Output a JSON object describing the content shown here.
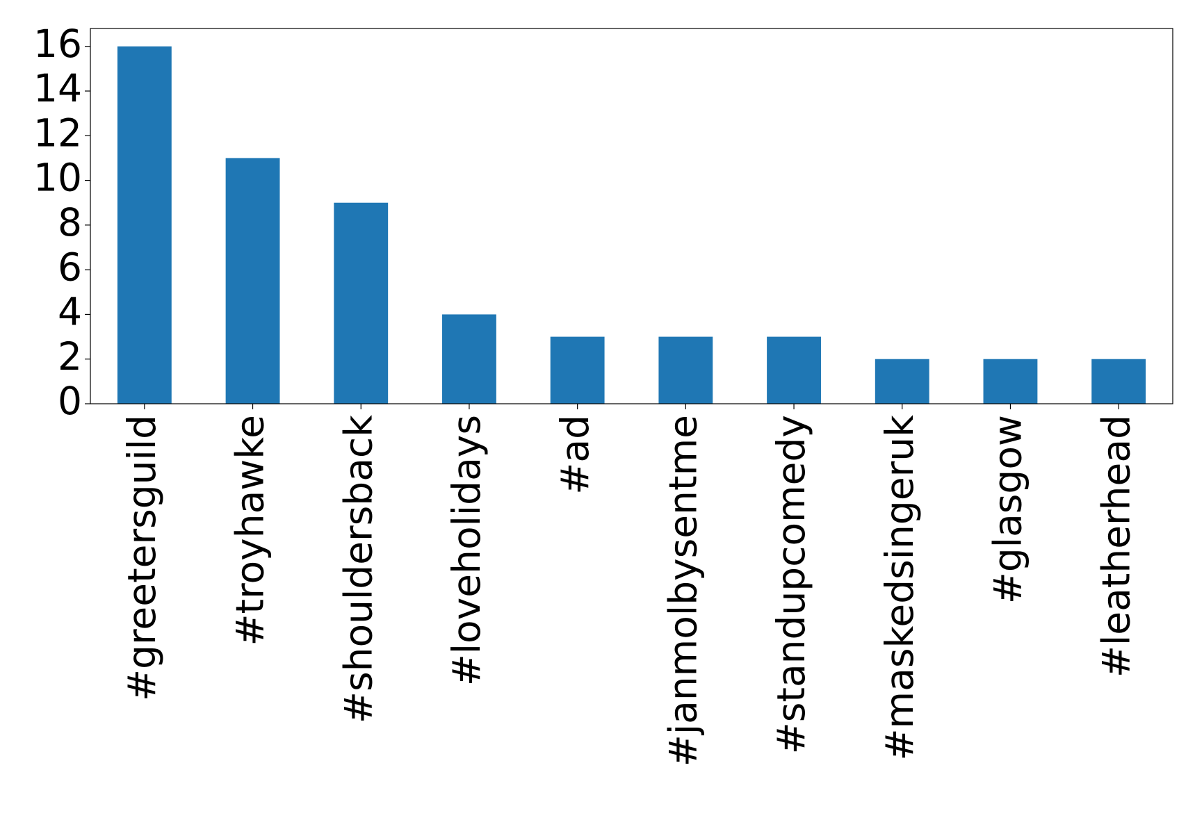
{
  "chart_data": {
    "type": "bar",
    "categories": [
      "#greetersguild",
      "#troyhawke",
      "#shouldersback",
      "#loveholidays",
      "#ad",
      "#janmolbysentme",
      "#standupcomedy",
      "#maskedsingeruk",
      "#glasgow",
      "#leatherhead"
    ],
    "values": [
      16,
      11,
      9,
      4,
      3,
      3,
      3,
      2,
      2,
      2
    ],
    "color": "#1f77b4",
    "ylim": [
      0,
      16.8
    ],
    "yticks": [
      0,
      2,
      4,
      6,
      8,
      10,
      12,
      14,
      16
    ],
    "grid": false
  }
}
